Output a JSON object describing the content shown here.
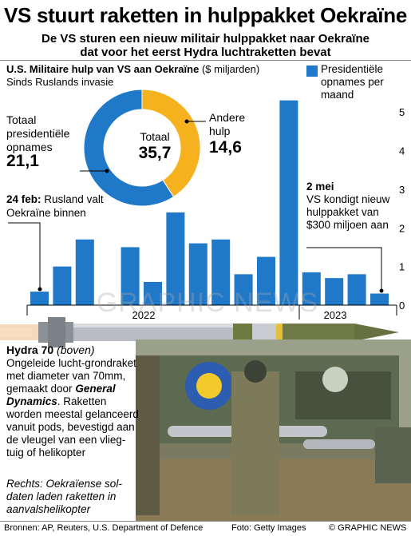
{
  "header": {
    "title": "VS stuurt raketten in hulppakket Oekraïne",
    "subtitle_line1": "De VS sturen een nieuw militair hulppakket naar Oekraïne",
    "subtitle_line2": "dat voor het eerst Hydra luchtraketten bevat"
  },
  "chart_heading": {
    "bold_part": "U.S. Militaire hulp van VS aan Oekraïne",
    "units": "($ miljarden)",
    "subheading": "Sinds Ruslands invasie"
  },
  "chart_data": [
    {
      "type": "pie",
      "title": "",
      "center_label": "Totaal",
      "center_value": "35,7",
      "slices": [
        {
          "label": "Totaal presidentiële opnames",
          "value": 21.1,
          "value_text": "21,1",
          "color": "#1f78c8"
        },
        {
          "label": "Andere hulp",
          "value": 14.6,
          "value_text": "14,6",
          "color": "#f5b21e"
        }
      ]
    },
    {
      "type": "bar",
      "series": [
        {
          "name": "Presidentiële opnames per maand",
          "color": "#1f78c8",
          "values": [
            0.35,
            1.0,
            1.7,
            0,
            1.5,
            0.6,
            2.4,
            1.6,
            1.7,
            0.8,
            1.25,
            5.3,
            0.85,
            0.7,
            0.8,
            0.3
          ]
        }
      ],
      "x_labels": [
        "2022",
        "2023"
      ],
      "yticks": [
        0,
        1,
        2,
        3,
        4,
        5
      ],
      "ylim": [
        0,
        5.5
      ],
      "grid": false
    }
  ],
  "legend": {
    "label": "Presidentiële opnames per maand",
    "color": "#1f78c8"
  },
  "pie_labels": {
    "total_label": "Totaal",
    "total_value": "35,7",
    "presidential_label": "Totaal presidentiële opnames",
    "presidential_value": "21,1",
    "other_label": "Andere hulp",
    "other_value": "14,6"
  },
  "annotations": {
    "feb_date": "24 feb:",
    "feb_text": "Rusland valt Oekraïne binnen",
    "may_date": "2 mei",
    "may_text": "VS kondigt nieuw hulppakket van $300 miljoen aan"
  },
  "hydra": {
    "name": "Hydra 70",
    "name_note": "(boven)",
    "desc_part1": "Ongeleide lucht-grondraket met diameter van 70mm, gemaakt door",
    "maker": "General Dynamics",
    "desc_part2": ". Raketten worden meestal gelanceerd vanuit pods, bevestigd aan de vleugel van een vlieg­tuig of helikopter",
    "photo_caption": "Rechts: Oekraïense sol­daten laden raketten in aanvalshelikopter"
  },
  "footer": {
    "sources": "Bronnen: AP, Reuters, U.S. Department of Defence",
    "photo_credit": "Foto: Getty Images",
    "brand": "© GRAPHIC NEWS"
  },
  "watermark": "GRAPHIC NEWS"
}
